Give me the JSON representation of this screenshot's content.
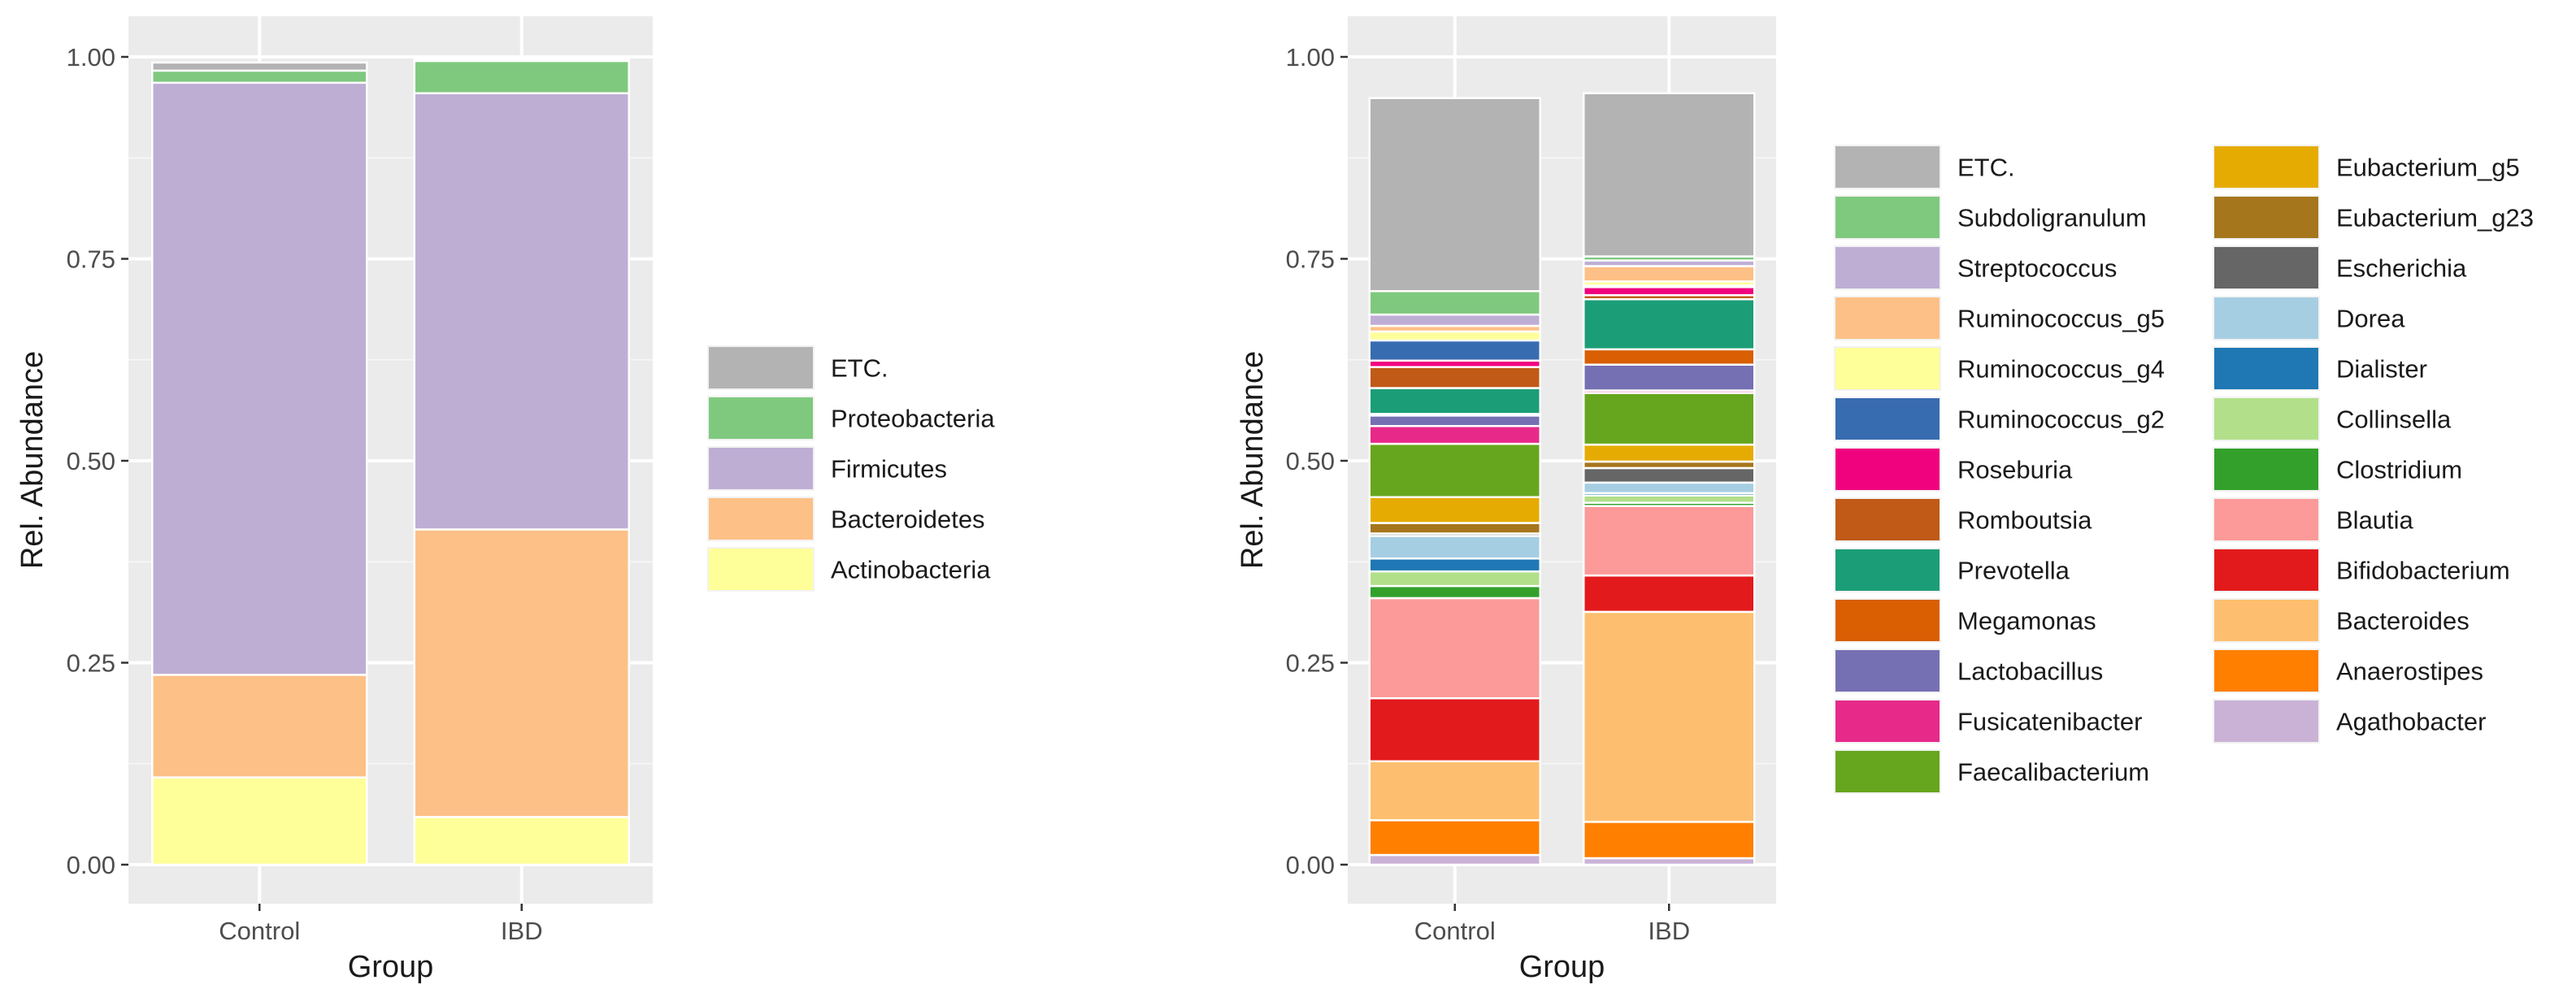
{
  "chart_data": [
    {
      "type": "bar",
      "stacked": true,
      "title": "",
      "xlabel": "Group",
      "ylabel": "Rel. Abundance",
      "ylim": [
        0,
        1
      ],
      "yticks": [
        "0.00",
        "0.25",
        "0.50",
        "0.75",
        "1.00"
      ],
      "categories": [
        "Control",
        "IBD"
      ],
      "stack_order": [
        "Actinobacteria",
        "Bacteroidetes",
        "Firmicutes",
        "Proteobacteria",
        "ETC."
      ],
      "legend_order": [
        "ETC.",
        "Proteobacteria",
        "Firmicutes",
        "Bacteroidetes",
        "Actinobacteria"
      ],
      "series": [
        {
          "name": "Actinobacteria",
          "color": "#FFFF99",
          "values": [
            0.108,
            0.059
          ]
        },
        {
          "name": "Bacteroidetes",
          "color": "#FDC086",
          "values": [
            0.127,
            0.356
          ]
        },
        {
          "name": "Firmicutes",
          "color": "#BEAED4",
          "values": [
            0.733,
            0.54
          ]
        },
        {
          "name": "Proteobacteria",
          "color": "#7FC97F",
          "values": [
            0.015,
            0.04
          ]
        },
        {
          "name": "ETC.",
          "color": "#B3B3B3",
          "values": [
            0.01,
            0.002
          ]
        }
      ]
    },
    {
      "type": "bar",
      "stacked": true,
      "title": "",
      "xlabel": "Group",
      "ylabel": "Rel. Abundance",
      "ylim": [
        0,
        1
      ],
      "yticks": [
        "0.00",
        "0.25",
        "0.50",
        "0.75",
        "1.00"
      ],
      "categories": [
        "Control",
        "IBD"
      ],
      "legend_columns": [
        [
          "ETC.",
          "Subdoligranulum",
          "Streptococcus",
          "Ruminococcus_g5",
          "Ruminococcus_g4",
          "Ruminococcus_g2",
          "Roseburia",
          "Romboutsia",
          "Prevotella",
          "Megamonas",
          "Lactobacillus",
          "Fusicatenibacter",
          "Faecalibacterium"
        ],
        [
          "Eubacterium_g5",
          "Eubacterium_g23",
          "Escherichia",
          "Dorea",
          "Dialister",
          "Collinsella",
          "Clostridium",
          "Blautia",
          "Bifidobacterium",
          "Bacteroides",
          "Anaerostipes",
          "Agathobacter"
        ]
      ],
      "series": [
        {
          "name": "Agathobacter",
          "color": "#CAB2D6",
          "values": [
            0.012,
            0.008
          ]
        },
        {
          "name": "Anaerostipes",
          "color": "#FF7F00",
          "values": [
            0.043,
            0.045
          ]
        },
        {
          "name": "Bacteroides",
          "color": "#FDBF6F",
          "values": [
            0.073,
            0.26
          ]
        },
        {
          "name": "Bifidobacterium",
          "color": "#E31A1C",
          "values": [
            0.078,
            0.045
          ]
        },
        {
          "name": "Blautia",
          "color": "#FB9A99",
          "values": [
            0.124,
            0.086
          ]
        },
        {
          "name": "Clostridium",
          "color": "#33A02C",
          "values": [
            0.015,
            0.004
          ]
        },
        {
          "name": "Collinsella",
          "color": "#B2DF8A",
          "values": [
            0.018,
            0.009
          ]
        },
        {
          "name": "Dialister",
          "color": "#1F78B4",
          "values": [
            0.016,
            0.003
          ]
        },
        {
          "name": "Dorea",
          "color": "#A6CEE3",
          "values": [
            0.028,
            0.013
          ]
        },
        {
          "name": "Escherichia",
          "color": "#666666",
          "values": [
            0.003,
            0.018
          ]
        },
        {
          "name": "Eubacterium_g23",
          "color": "#A6761D",
          "values": [
            0.013,
            0.008
          ]
        },
        {
          "name": "Eubacterium_g5",
          "color": "#E6AB02",
          "values": [
            0.032,
            0.021
          ]
        },
        {
          "name": "Faecalibacterium",
          "color": "#66A61E",
          "values": [
            0.066,
            0.064
          ]
        },
        {
          "name": "Fusicatenibacter",
          "color": "#E7298A",
          "values": [
            0.022,
            0.003
          ]
        },
        {
          "name": "Lactobacillus",
          "color": "#7570B3",
          "values": [
            0.013,
            0.032
          ]
        },
        {
          "name": "Megamonas",
          "color": "#D95F02",
          "values": [
            0.002,
            0.019
          ]
        },
        {
          "name": "Prevotella",
          "color": "#1B9E77",
          "values": [
            0.032,
            0.062
          ]
        },
        {
          "name": "Romboutsia",
          "color": "#C15A17",
          "values": [
            0.026,
            0.005
          ]
        },
        {
          "name": "Roseburia",
          "color": "#F0027F",
          "values": [
            0.008,
            0.01
          ]
        },
        {
          "name": "Ruminococcus_g2",
          "color": "#386CB0",
          "values": [
            0.025,
            0.002
          ]
        },
        {
          "name": "Ruminococcus_g4",
          "color": "#FFFF99",
          "values": [
            0.011,
            0.005
          ]
        },
        {
          "name": "Ruminococcus_g5",
          "color": "#FDC086",
          "values": [
            0.007,
            0.019
          ]
        },
        {
          "name": "Streptococcus",
          "color": "#BEAED4",
          "values": [
            0.014,
            0.007
          ]
        },
        {
          "name": "Subdoligranulum",
          "color": "#7FC97F",
          "values": [
            0.029,
            0.005
          ]
        },
        {
          "name": "ETC.",
          "color": "#B3B3B3",
          "values": [
            0.239,
            0.202
          ]
        }
      ]
    }
  ]
}
